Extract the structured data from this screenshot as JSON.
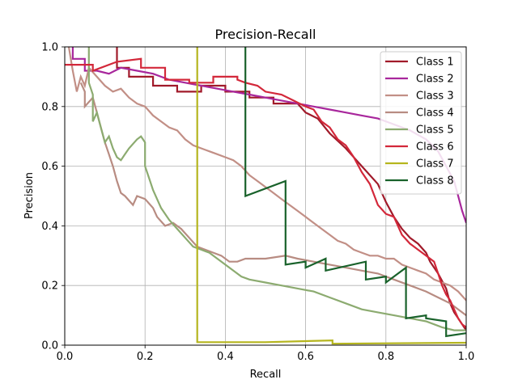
{
  "chart_data": {
    "type": "line",
    "title": "Precision-Recall",
    "xlabel": "Recall",
    "ylabel": "Precision",
    "xlim": [
      0.0,
      1.0
    ],
    "ylim": [
      0.0,
      1.0
    ],
    "xticks": [
      "0.0",
      "0.2",
      "0.4",
      "0.6",
      "0.8",
      "1.0"
    ],
    "yticks": [
      "0.0",
      "0.2",
      "0.4",
      "0.6",
      "0.8",
      "1.0"
    ],
    "grid": true,
    "legend_position": "top-right",
    "series": [
      {
        "name": "Class 1",
        "color": "#a11a2a",
        "points": [
          [
            0.13,
            1.0
          ],
          [
            0.13,
            0.93
          ],
          [
            0.16,
            0.93
          ],
          [
            0.16,
            0.9
          ],
          [
            0.22,
            0.9
          ],
          [
            0.22,
            0.87
          ],
          [
            0.28,
            0.87
          ],
          [
            0.28,
            0.85
          ],
          [
            0.34,
            0.85
          ],
          [
            0.34,
            0.87
          ],
          [
            0.4,
            0.87
          ],
          [
            0.4,
            0.85
          ],
          [
            0.46,
            0.85
          ],
          [
            0.46,
            0.83
          ],
          [
            0.52,
            0.83
          ],
          [
            0.52,
            0.81
          ],
          [
            0.58,
            0.81
          ],
          [
            0.6,
            0.78
          ],
          [
            0.63,
            0.76
          ],
          [
            0.66,
            0.71
          ],
          [
            0.7,
            0.66
          ],
          [
            0.74,
            0.6
          ],
          [
            0.78,
            0.54
          ],
          [
            0.8,
            0.48
          ],
          [
            0.82,
            0.43
          ],
          [
            0.84,
            0.39
          ],
          [
            0.86,
            0.36
          ],
          [
            0.88,
            0.34
          ],
          [
            0.9,
            0.31
          ],
          [
            0.91,
            0.28
          ],
          [
            0.93,
            0.24
          ],
          [
            0.95,
            0.19
          ],
          [
            0.96,
            0.14
          ],
          [
            0.97,
            0.11
          ],
          [
            0.98,
            0.09
          ],
          [
            0.99,
            0.07
          ],
          [
            1.0,
            0.05
          ]
        ]
      },
      {
        "name": "Class 2",
        "color": "#a8279c",
        "points": [
          [
            0.02,
            1.0
          ],
          [
            0.02,
            0.96
          ],
          [
            0.05,
            0.96
          ],
          [
            0.05,
            0.92
          ],
          [
            0.08,
            0.92
          ],
          [
            0.11,
            0.91
          ],
          [
            0.14,
            0.93
          ],
          [
            0.18,
            0.92
          ],
          [
            0.22,
            0.91
          ],
          [
            0.26,
            0.89
          ],
          [
            0.3,
            0.88
          ],
          [
            0.34,
            0.87
          ],
          [
            0.38,
            0.86
          ],
          [
            0.42,
            0.85
          ],
          [
            0.46,
            0.84
          ],
          [
            0.5,
            0.83
          ],
          [
            0.54,
            0.82
          ],
          [
            0.58,
            0.81
          ],
          [
            0.62,
            0.8
          ],
          [
            0.66,
            0.79
          ],
          [
            0.7,
            0.78
          ],
          [
            0.74,
            0.77
          ],
          [
            0.78,
            0.76
          ],
          [
            0.82,
            0.74
          ],
          [
            0.86,
            0.72
          ],
          [
            0.9,
            0.69
          ],
          [
            0.93,
            0.65
          ],
          [
            0.95,
            0.6
          ],
          [
            0.97,
            0.55
          ],
          [
            0.98,
            0.5
          ],
          [
            0.99,
            0.45
          ],
          [
            1.0,
            0.41
          ]
        ]
      },
      {
        "name": "Class 3",
        "color": "#c28f86",
        "points": [
          [
            0.01,
            1.0
          ],
          [
            0.02,
            0.92
          ],
          [
            0.03,
            0.85
          ],
          [
            0.04,
            0.9
          ],
          [
            0.05,
            0.87
          ],
          [
            0.06,
            0.93
          ],
          [
            0.08,
            0.9
          ],
          [
            0.1,
            0.87
          ],
          [
            0.12,
            0.85
          ],
          [
            0.14,
            0.86
          ],
          [
            0.16,
            0.83
          ],
          [
            0.18,
            0.81
          ],
          [
            0.2,
            0.8
          ],
          [
            0.22,
            0.77
          ],
          [
            0.24,
            0.75
          ],
          [
            0.26,
            0.73
          ],
          [
            0.28,
            0.72
          ],
          [
            0.3,
            0.69
          ],
          [
            0.32,
            0.67
          ],
          [
            0.34,
            0.66
          ],
          [
            0.36,
            0.65
          ],
          [
            0.38,
            0.64
          ],
          [
            0.4,
            0.63
          ],
          [
            0.42,
            0.62
          ],
          [
            0.44,
            0.6
          ],
          [
            0.46,
            0.57
          ],
          [
            0.48,
            0.55
          ],
          [
            0.5,
            0.53
          ],
          [
            0.52,
            0.51
          ],
          [
            0.54,
            0.49
          ],
          [
            0.56,
            0.47
          ],
          [
            0.58,
            0.45
          ],
          [
            0.6,
            0.43
          ],
          [
            0.62,
            0.41
          ],
          [
            0.64,
            0.39
          ],
          [
            0.66,
            0.37
          ],
          [
            0.68,
            0.35
          ],
          [
            0.7,
            0.34
          ],
          [
            0.72,
            0.32
          ],
          [
            0.74,
            0.31
          ],
          [
            0.76,
            0.3
          ],
          [
            0.78,
            0.3
          ],
          [
            0.8,
            0.29
          ],
          [
            0.82,
            0.29
          ],
          [
            0.84,
            0.27
          ],
          [
            0.86,
            0.26
          ],
          [
            0.88,
            0.25
          ],
          [
            0.9,
            0.24
          ],
          [
            0.92,
            0.22
          ],
          [
            0.94,
            0.21
          ],
          [
            0.96,
            0.2
          ],
          [
            0.98,
            0.18
          ],
          [
            1.0,
            0.15
          ]
        ]
      },
      {
        "name": "Class 4",
        "color": "#b88c82",
        "points": [
          [
            0.04,
            0.88
          ],
          [
            0.05,
            0.85
          ],
          [
            0.05,
            0.8
          ],
          [
            0.07,
            0.83
          ],
          [
            0.08,
            0.78
          ],
          [
            0.09,
            0.73
          ],
          [
            0.1,
            0.68
          ],
          [
            0.11,
            0.64
          ],
          [
            0.12,
            0.6
          ],
          [
            0.13,
            0.55
          ],
          [
            0.14,
            0.51
          ],
          [
            0.15,
            0.5
          ],
          [
            0.17,
            0.47
          ],
          [
            0.18,
            0.5
          ],
          [
            0.2,
            0.49
          ],
          [
            0.22,
            0.46
          ],
          [
            0.23,
            0.43
          ],
          [
            0.25,
            0.4
          ],
          [
            0.27,
            0.41
          ],
          [
            0.29,
            0.39
          ],
          [
            0.31,
            0.36
          ],
          [
            0.33,
            0.33
          ],
          [
            0.35,
            0.32
          ],
          [
            0.37,
            0.31
          ],
          [
            0.39,
            0.3
          ],
          [
            0.41,
            0.28
          ],
          [
            0.43,
            0.28
          ],
          [
            0.45,
            0.29
          ],
          [
            0.5,
            0.29
          ],
          [
            0.55,
            0.3
          ],
          [
            0.58,
            0.29
          ],
          [
            0.62,
            0.28
          ],
          [
            0.66,
            0.27
          ],
          [
            0.7,
            0.26
          ],
          [
            0.74,
            0.25
          ],
          [
            0.78,
            0.24
          ],
          [
            0.82,
            0.22
          ],
          [
            0.86,
            0.2
          ],
          [
            0.9,
            0.18
          ],
          [
            0.93,
            0.16
          ],
          [
            0.96,
            0.14
          ],
          [
            0.98,
            0.12
          ],
          [
            1.0,
            0.1
          ]
        ]
      },
      {
        "name": "Class 5",
        "color": "#8cab70",
        "points": [
          [
            0.06,
            1.0
          ],
          [
            0.06,
            0.88
          ],
          [
            0.07,
            0.84
          ],
          [
            0.07,
            0.75
          ],
          [
            0.08,
            0.78
          ],
          [
            0.09,
            0.73
          ],
          [
            0.1,
            0.68
          ],
          [
            0.11,
            0.7
          ],
          [
            0.12,
            0.66
          ],
          [
            0.13,
            0.63
          ],
          [
            0.14,
            0.62
          ],
          [
            0.15,
            0.64
          ],
          [
            0.16,
            0.66
          ],
          [
            0.18,
            0.69
          ],
          [
            0.19,
            0.7
          ],
          [
            0.2,
            0.68
          ],
          [
            0.2,
            0.6
          ],
          [
            0.21,
            0.56
          ],
          [
            0.22,
            0.52
          ],
          [
            0.24,
            0.46
          ],
          [
            0.26,
            0.42
          ],
          [
            0.28,
            0.39
          ],
          [
            0.3,
            0.36
          ],
          [
            0.32,
            0.33
          ],
          [
            0.34,
            0.32
          ],
          [
            0.36,
            0.31
          ],
          [
            0.38,
            0.29
          ],
          [
            0.4,
            0.27
          ],
          [
            0.42,
            0.25
          ],
          [
            0.44,
            0.23
          ],
          [
            0.46,
            0.22
          ],
          [
            0.5,
            0.21
          ],
          [
            0.54,
            0.2
          ],
          [
            0.58,
            0.19
          ],
          [
            0.62,
            0.18
          ],
          [
            0.66,
            0.16
          ],
          [
            0.7,
            0.14
          ],
          [
            0.74,
            0.12
          ],
          [
            0.78,
            0.11
          ],
          [
            0.82,
            0.1
          ],
          [
            0.86,
            0.09
          ],
          [
            0.9,
            0.08
          ],
          [
            0.94,
            0.06
          ],
          [
            0.97,
            0.05
          ],
          [
            1.0,
            0.05
          ]
        ]
      },
      {
        "name": "Class 6",
        "color": "#d3283a",
        "points": [
          [
            0.0,
            0.94
          ],
          [
            0.07,
            0.94
          ],
          [
            0.07,
            0.92
          ],
          [
            0.13,
            0.95
          ],
          [
            0.19,
            0.96
          ],
          [
            0.19,
            0.93
          ],
          [
            0.25,
            0.93
          ],
          [
            0.25,
            0.89
          ],
          [
            0.31,
            0.89
          ],
          [
            0.31,
            0.88
          ],
          [
            0.37,
            0.88
          ],
          [
            0.37,
            0.9
          ],
          [
            0.43,
            0.9
          ],
          [
            0.43,
            0.89
          ],
          [
            0.45,
            0.88
          ],
          [
            0.48,
            0.87
          ],
          [
            0.5,
            0.85
          ],
          [
            0.54,
            0.84
          ],
          [
            0.57,
            0.82
          ],
          [
            0.6,
            0.8
          ],
          [
            0.62,
            0.79
          ],
          [
            0.64,
            0.75
          ],
          [
            0.66,
            0.73
          ],
          [
            0.68,
            0.69
          ],
          [
            0.7,
            0.67
          ],
          [
            0.72,
            0.63
          ],
          [
            0.74,
            0.58
          ],
          [
            0.76,
            0.54
          ],
          [
            0.78,
            0.47
          ],
          [
            0.8,
            0.44
          ],
          [
            0.82,
            0.43
          ],
          [
            0.84,
            0.37
          ],
          [
            0.86,
            0.34
          ],
          [
            0.88,
            0.32
          ],
          [
            0.9,
            0.3
          ],
          [
            0.92,
            0.28
          ],
          [
            0.93,
            0.24
          ],
          [
            0.94,
            0.2
          ],
          [
            0.95,
            0.17
          ],
          [
            0.96,
            0.15
          ],
          [
            0.97,
            0.12
          ],
          [
            0.98,
            0.09
          ],
          [
            0.99,
            0.07
          ],
          [
            1.0,
            0.06
          ]
        ]
      },
      {
        "name": "Class 7",
        "color": "#b5b51e",
        "points": [
          [
            0.33,
            1.0
          ],
          [
            0.33,
            0.01
          ],
          [
            0.5,
            0.01
          ],
          [
            0.667,
            0.016
          ],
          [
            0.667,
            0.005
          ],
          [
            1.0,
            0.008
          ]
        ]
      },
      {
        "name": "Class 8",
        "color": "#19622b",
        "points": [
          [
            0.45,
            1.0
          ],
          [
            0.45,
            0.5
          ],
          [
            0.55,
            0.55
          ],
          [
            0.55,
            0.27
          ],
          [
            0.6,
            0.28
          ],
          [
            0.6,
            0.26
          ],
          [
            0.65,
            0.29
          ],
          [
            0.65,
            0.25
          ],
          [
            0.75,
            0.28
          ],
          [
            0.75,
            0.22
          ],
          [
            0.8,
            0.23
          ],
          [
            0.8,
            0.21
          ],
          [
            0.85,
            0.26
          ],
          [
            0.85,
            0.09
          ],
          [
            0.9,
            0.1
          ],
          [
            0.9,
            0.09
          ],
          [
            0.95,
            0.08
          ],
          [
            0.95,
            0.03
          ],
          [
            1.0,
            0.04
          ]
        ]
      }
    ]
  }
}
